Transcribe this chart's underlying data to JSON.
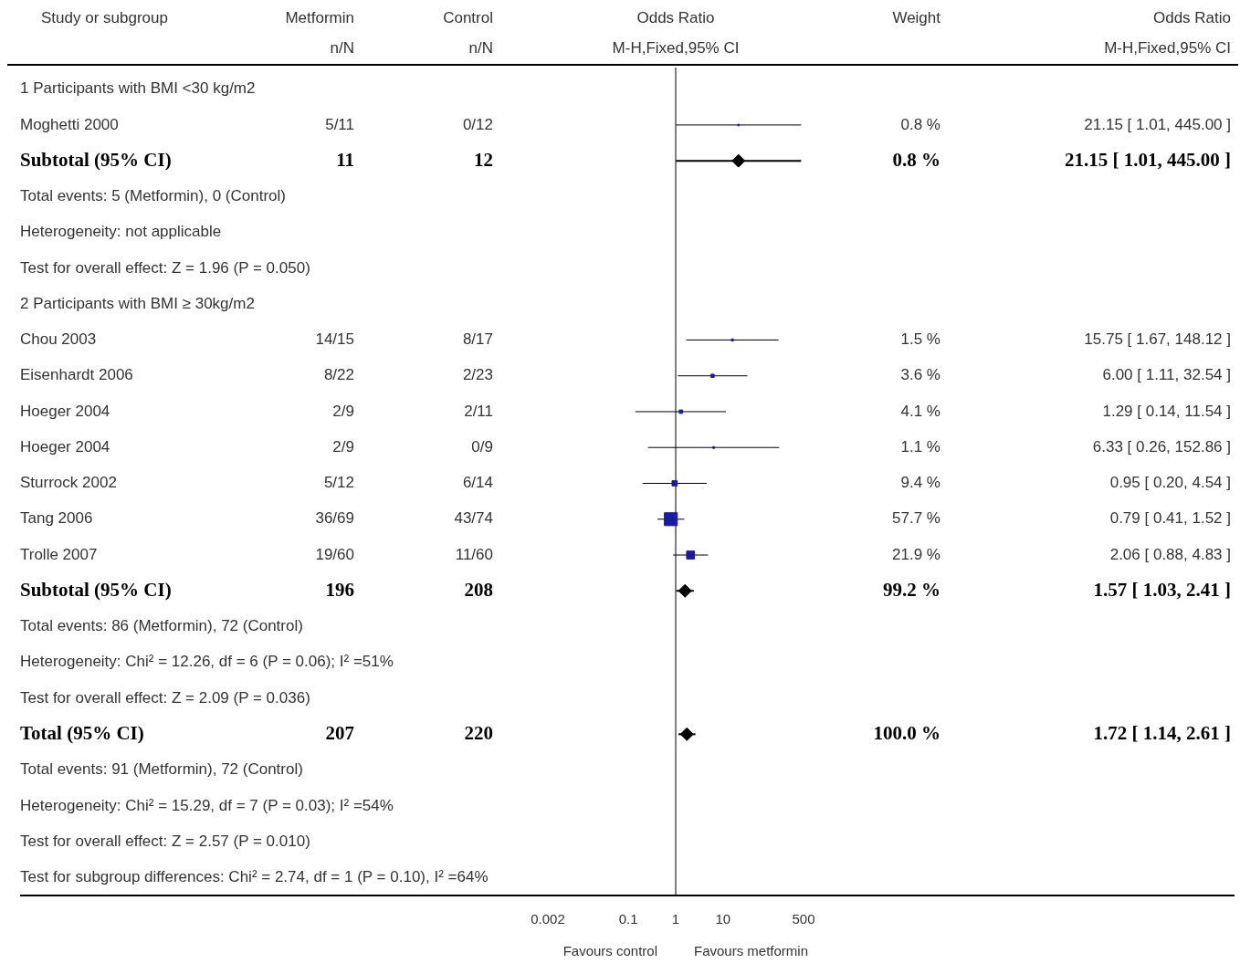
{
  "chart_data": {
    "type": "scatter",
    "orientation": "horizontal",
    "ylabel": "Study or subgroup",
    "xlabel": "Odds Ratio\nM-H,Fixed,95% CI",
    "log": "x",
    "xlim": [
      0.002,
      500
    ],
    "xticks": [
      0.002,
      0.1,
      1,
      10,
      500
    ],
    "categories": [
      "1 Participants with BMI <30 kg/m2",
      "Moghetti 2000",
      "Subtotal (95% CI)",
      "Total events: 5 (Metformin), 0 (Control)",
      "Heterogeneity: not applicable",
      "Test for overall effect: Z = 1.96 (P = 0.050)",
      "2 Participants with BMI ≥ 30kg/m2",
      "Chou 2003",
      "Eisenhardt 2006",
      "Hoeger 2004",
      "Hoeger 2004",
      "Sturrock 2002",
      "Tang 2006",
      "Trolle 2007",
      "Subtotal (95% CI)",
      "Total events: 86 (Metformin), 72 (Control)",
      "Heterogeneity: Chi² = 12.26, df = 6 (P = 0.06); I² =51%",
      "Test for overall effect: Z = 2.09 (P = 0.036)",
      "Total (95% CI)",
      "Total events: 91 (Metformin), 72 (Control)",
      "Heterogeneity: Chi² = 15.29, df = 7 (P = 0.03); I² =54%",
      "Test for overall effect: Z = 2.57 (P = 0.010)",
      "Test for subgroup differences: Chi² = 2.74, df = 1 (P = 0.10), I² =64%"
    ],
    "series": [
      {
        "type": "other",
        "name": "Metformin\nn/N",
        "values": [
          null,
          null,
          null,
          null,
          null,
          null,
          null,
          null,
          null,
          null,
          null,
          null,
          null,
          null,
          null,
          null,
          null,
          null,
          null,
          null,
          null,
          null,
          null
        ],
        "value_labels": [
          null,
          "5/11",
          "11",
          null,
          null,
          null,
          null,
          "14/15",
          "8/22",
          "2/9",
          "2/9",
          "5/12",
          "36/69",
          "19/60",
          "196",
          null,
          null,
          null,
          "207",
          null,
          null,
          null,
          null
        ]
      },
      {
        "type": "other",
        "name": "Control\nn/N",
        "values": [
          null,
          null,
          null,
          null,
          null,
          null,
          null,
          null,
          null,
          null,
          null,
          null,
          null,
          null,
          null,
          null,
          null,
          null,
          null,
          null,
          null,
          null,
          null
        ],
        "value_labels": [
          null,
          "0/12",
          "12",
          null,
          null,
          null,
          null,
          "8/17",
          "2/23",
          "2/11",
          "0/9",
          "6/14",
          "43/74",
          "11/60",
          "208",
          null,
          null,
          null,
          "220",
          null,
          null,
          null,
          null
        ]
      },
      {
        "type": "scatter",
        "marker": "square",
        "color": "#1a1aa8",
        "values": [
          null,
          21.15,
          null,
          null,
          null,
          null,
          null,
          15.75,
          6.0,
          1.29,
          6.33,
          0.95,
          0.79,
          2.06,
          null,
          null,
          null,
          null,
          null,
          null,
          null,
          null,
          null
        ],
        "errors": [
          null,
          [
            1.01,
            445.0
          ],
          null,
          null,
          null,
          null,
          null,
          [
            1.67,
            148.12
          ],
          [
            1.11,
            32.54
          ],
          [
            0.14,
            11.54
          ],
          [
            0.26,
            152.86
          ],
          [
            0.2,
            4.54
          ],
          [
            0.41,
            1.52
          ],
          [
            0.88,
            4.83
          ],
          null,
          null,
          null,
          null,
          null,
          null,
          null,
          null,
          null
        ],
        "sizes": [
          null,
          0.014,
          null,
          null,
          null,
          null,
          null,
          0.026,
          0.062,
          0.071,
          0.019,
          0.163,
          1,
          0.38,
          null,
          null,
          null,
          null,
          null,
          null,
          null,
          null,
          null
        ]
      },
      {
        "type": "scatter",
        "marker": "diamond",
        "color": "#000000",
        "values": [
          null,
          null,
          21.15,
          null,
          null,
          null,
          null,
          null,
          null,
          null,
          null,
          null,
          null,
          null,
          1.57,
          null,
          null,
          null,
          1.72,
          null,
          null,
          null,
          null
        ],
        "errors": [
          null,
          null,
          [
            1.01,
            445.0
          ],
          null,
          null,
          null,
          null,
          null,
          null,
          null,
          null,
          null,
          null,
          null,
          [
            1.03,
            2.41
          ],
          null,
          null,
          null,
          [
            1.14,
            2.61
          ],
          null,
          null,
          null,
          null
        ]
      },
      {
        "type": "other",
        "name": "Weight",
        "values": [
          null,
          null,
          null,
          null,
          null,
          null,
          null,
          null,
          null,
          null,
          null,
          null,
          null,
          null,
          null,
          null,
          null,
          null,
          null,
          null,
          null,
          null,
          null
        ],
        "value_labels": [
          null,
          "0.8 %",
          "0.8 %",
          null,
          null,
          null,
          null,
          "1.5 %",
          "3.6 %",
          "4.1 %",
          "1.1 %",
          "9.4 %",
          "57.7 %",
          "21.9 %",
          "99.2 %",
          null,
          null,
          null,
          "100.0 %",
          null,
          null,
          null,
          null
        ]
      },
      {
        "type": "other",
        "name": "Odds Ratio\nM-H,Fixed,95% CI",
        "values": [
          null,
          null,
          null,
          null,
          null,
          null,
          null,
          null,
          null,
          null,
          null,
          null,
          null,
          null,
          null,
          null,
          null,
          null,
          null,
          null,
          null,
          null,
          null
        ],
        "value_labels": [
          null,
          "21.15 [ 1.01, 445.00 ]",
          "21.15 [ 1.01, 445.00 ]",
          null,
          null,
          null,
          null,
          "15.75 [ 1.67, 148.12 ]",
          "6.00 [ 1.11, 32.54 ]",
          "1.29 [ 0.14, 11.54 ]",
          "6.33 [ 0.26, 152.86 ]",
          "0.95 [ 0.20, 4.54 ]",
          "0.79 [ 0.41, 1.52 ]",
          "2.06 [ 0.88, 4.83 ]",
          "1.57 [ 1.03, 2.41 ]",
          null,
          null,
          null,
          "1.72 [ 1.14, 2.61 ]",
          null,
          null,
          null,
          null
        ]
      }
    ],
    "ref_lines": [
      {
        "axis": "x",
        "value": 1,
        "color": "#000000"
      }
    ],
    "annotations": [
      "Favours control",
      "Favours metformin"
    ]
  }
}
